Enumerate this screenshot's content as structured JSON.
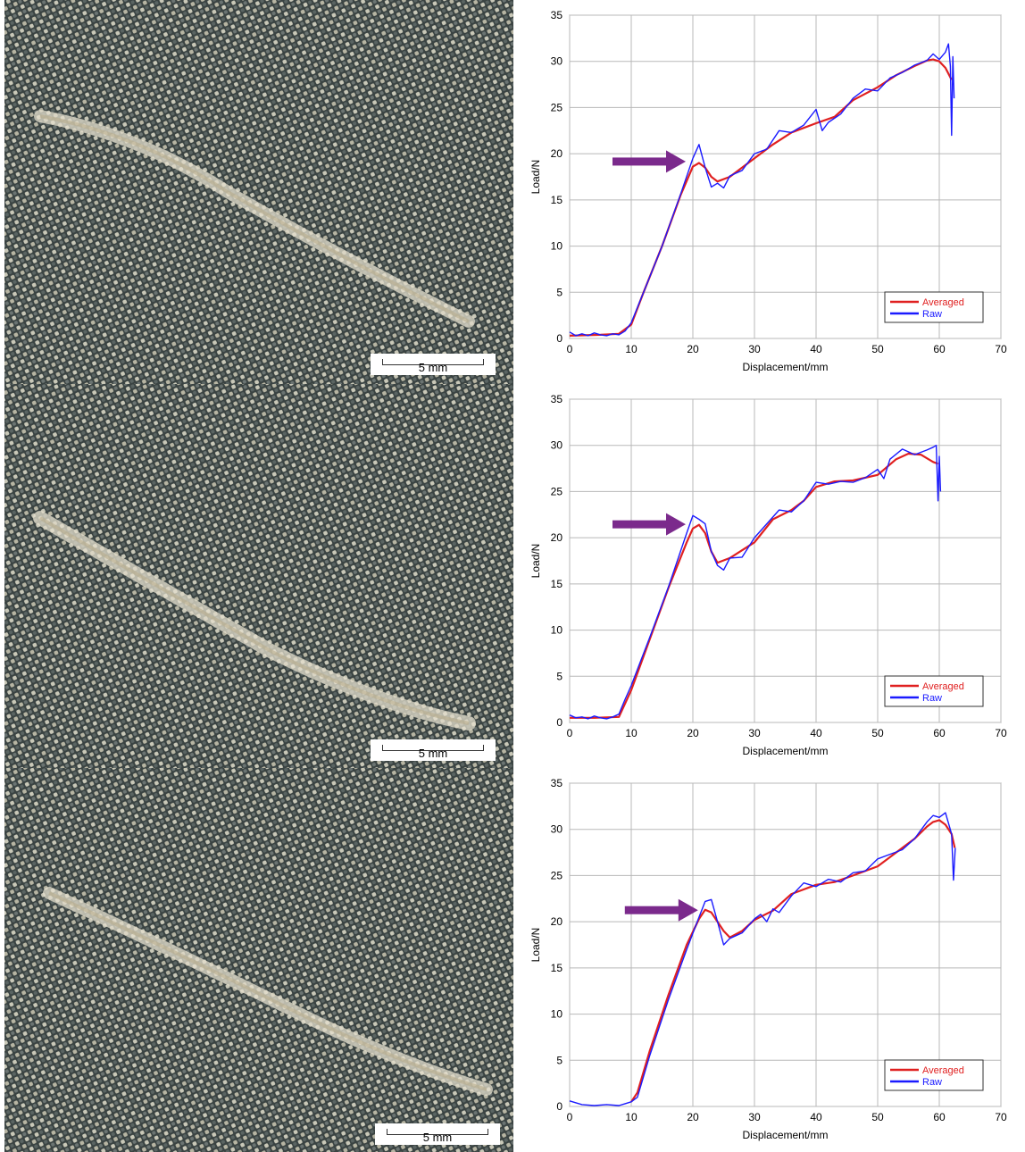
{
  "scale_bar_label": "5 mm",
  "colors": {
    "averaged": "#e02020",
    "raw": "#1a1aff",
    "arrow": "#7b2a8c",
    "grid": "#b8b8b8"
  },
  "chart_data": [
    {
      "type": "line",
      "xlabel": "Displacement/mm",
      "ylabel": "Load/N",
      "xlim": [
        0,
        70
      ],
      "ylim": [
        0,
        35
      ],
      "xticks": [
        0,
        10,
        20,
        30,
        40,
        50,
        60,
        70
      ],
      "yticks": [
        0,
        5,
        10,
        15,
        20,
        25,
        30,
        35
      ],
      "grid": true,
      "legend_position": "bottom-right",
      "annotation": {
        "type": "arrow",
        "points_to": [
          20,
          19.2
        ]
      },
      "series": [
        {
          "name": "Averaged",
          "x": [
            0,
            5,
            8,
            10,
            12,
            15,
            18,
            20,
            21,
            22,
            23,
            24,
            26,
            30,
            33,
            36,
            40,
            43,
            46,
            50,
            53,
            56,
            58,
            59,
            60,
            61,
            62
          ],
          "y": [
            0.3,
            0.4,
            0.5,
            1.5,
            5,
            10,
            15.5,
            18.6,
            19,
            18.5,
            17.5,
            17,
            17.5,
            19.5,
            21,
            22.3,
            23.3,
            24,
            25.8,
            27.2,
            28.5,
            29.5,
            30.1,
            30.2,
            30,
            29.3,
            28
          ]
        },
        {
          "name": "Raw",
          "x": [
            0,
            1,
            2,
            3,
            4,
            5,
            6,
            7,
            8,
            9,
            10,
            12,
            15,
            18,
            20,
            21,
            22,
            23,
            24,
            25,
            26,
            28,
            30,
            32,
            34,
            36,
            38,
            40,
            41,
            42,
            44,
            46,
            48,
            50,
            52,
            54,
            56,
            58,
            59,
            60,
            61,
            61.5,
            61.8,
            62,
            62.2,
            62.4
          ],
          "y": [
            0.7,
            0.3,
            0.5,
            0.3,
            0.6,
            0.4,
            0.3,
            0.5,
            0.4,
            0.8,
            1.7,
            5,
            10,
            15.6,
            19.5,
            21,
            18.5,
            16.4,
            16.8,
            16.3,
            17.6,
            18.2,
            20,
            20.5,
            22.5,
            22.3,
            23.1,
            24.8,
            22.5,
            23.4,
            24.3,
            26,
            27,
            26.8,
            28.2,
            28.8,
            29.6,
            30.1,
            30.8,
            30.2,
            31,
            31.9,
            29.5,
            22,
            30.5,
            26
          ]
        }
      ]
    },
    {
      "type": "line",
      "xlabel": "Displacement/mm",
      "ylabel": "Load/N",
      "xlim": [
        0,
        70
      ],
      "ylim": [
        0,
        35
      ],
      "xticks": [
        0,
        10,
        20,
        30,
        40,
        50,
        60,
        70
      ],
      "yticks": [
        0,
        5,
        10,
        15,
        20,
        25,
        30,
        35
      ],
      "grid": true,
      "legend_position": "bottom-right",
      "annotation": {
        "type": "arrow",
        "points_to": [
          20,
          21.5
        ]
      },
      "series": [
        {
          "name": "Averaged",
          "x": [
            0,
            4,
            8,
            10,
            13,
            16,
            19,
            20,
            21,
            22,
            23,
            24,
            26,
            30,
            33,
            36,
            38,
            40,
            43,
            46,
            50,
            53,
            55,
            57,
            58,
            59,
            59.8
          ],
          "y": [
            0.5,
            0.5,
            0.6,
            3.5,
            9,
            14.5,
            19.5,
            21,
            21.4,
            20.5,
            18.5,
            17.3,
            17.8,
            19.5,
            22,
            23,
            24,
            25.5,
            26.1,
            26.2,
            26.8,
            28.5,
            29.1,
            29,
            28.6,
            28.2,
            28
          ]
        },
        {
          "name": "Raw",
          "x": [
            0,
            1,
            2,
            3,
            4,
            5,
            6,
            7,
            8,
            9,
            10,
            13,
            16,
            19,
            20,
            21,
            22,
            23,
            24,
            25,
            26,
            28,
            30,
            32,
            34,
            36,
            38,
            40,
            42,
            44,
            46,
            48,
            50,
            51,
            52,
            54,
            56,
            58,
            59,
            59.5,
            59.8,
            60,
            60.2
          ],
          "y": [
            0.8,
            0.5,
            0.6,
            0.4,
            0.7,
            0.5,
            0.4,
            0.6,
            0.9,
            2.5,
            4,
            9.2,
            14.6,
            20.5,
            22.4,
            22,
            21.5,
            18.5,
            17,
            16.5,
            17.8,
            17.9,
            20,
            21.5,
            23,
            22.8,
            24,
            26,
            25.8,
            26.1,
            26,
            26.5,
            27.4,
            26.4,
            28.5,
            29.6,
            29,
            29.5,
            29.8,
            30,
            24,
            28.8,
            25
          ]
        }
      ]
    },
    {
      "type": "line",
      "xlabel": "Displacement/mm",
      "ylabel": "Load/N",
      "xlim": [
        0,
        70
      ],
      "ylim": [
        0,
        35
      ],
      "xticks": [
        0,
        10,
        20,
        30,
        40,
        50,
        60,
        70
      ],
      "yticks": [
        0,
        5,
        10,
        15,
        20,
        25,
        30,
        35
      ],
      "grid": true,
      "legend_position": "bottom-right",
      "annotation": {
        "type": "arrow",
        "points_to": [
          22,
          21.3
        ]
      },
      "series": [
        {
          "name": "Averaged",
          "x": [
            10,
            11,
            13,
            16,
            19,
            21,
            22,
            23,
            24,
            25,
            26,
            28,
            30,
            33,
            36,
            40,
            43,
            46,
            50,
            53,
            56,
            58,
            59,
            60,
            61,
            62,
            62.5
          ],
          "y": [
            0.5,
            1.5,
            6,
            12,
            17.5,
            20.3,
            21.3,
            21,
            20,
            19,
            18.3,
            19,
            20.2,
            21.2,
            23,
            24,
            24.3,
            25,
            26,
            27.5,
            29,
            30.3,
            30.8,
            31,
            30.5,
            29.5,
            28
          ]
        },
        {
          "name": "Raw",
          "x": [
            0,
            2,
            4,
            6,
            8,
            9,
            10,
            11,
            13,
            16,
            19,
            21,
            22,
            23,
            24,
            25,
            26,
            27,
            28,
            30,
            31,
            32,
            33,
            34,
            36,
            38,
            40,
            42,
            44,
            46,
            48,
            50,
            52,
            54,
            56,
            58,
            59,
            60,
            61,
            62,
            62.3,
            62.6
          ],
          "y": [
            0.6,
            0.2,
            0.1,
            0.2,
            0.1,
            0.3,
            0.5,
            1,
            5.5,
            11.5,
            17,
            20.5,
            22.2,
            22.4,
            20,
            17.5,
            18.2,
            18.5,
            18.8,
            20.3,
            20.8,
            20,
            21.4,
            21,
            22.8,
            24.2,
            23.8,
            24.6,
            24.3,
            25.3,
            25.5,
            26.8,
            27.3,
            27.8,
            29,
            30.8,
            31.5,
            31.3,
            31.8,
            29.5,
            24.5,
            28
          ]
        }
      ]
    }
  ]
}
